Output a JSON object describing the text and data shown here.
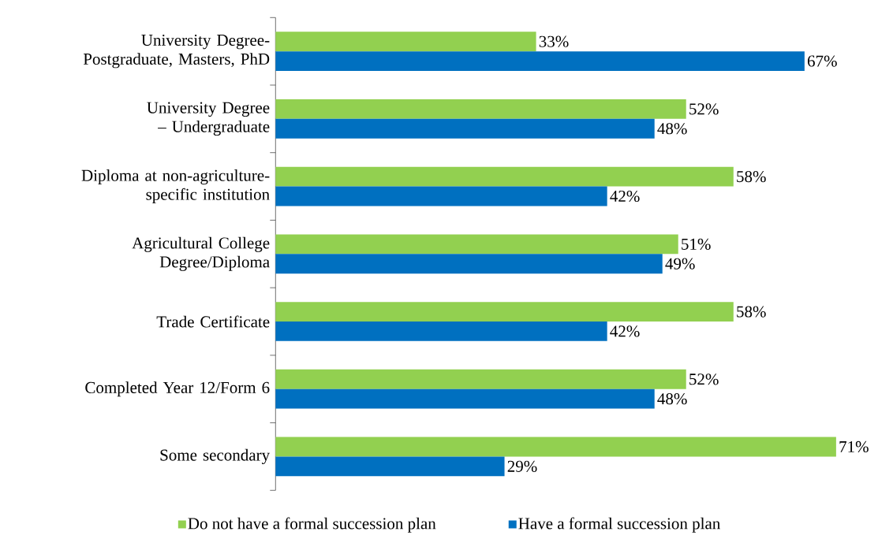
{
  "chart_data": {
    "type": "bar",
    "orientation": "horizontal",
    "legend": "bottom",
    "categories": [
      "University Degree-Postgraduate, Masters, PhD",
      "University Degree – Undergraduate",
      "Diploma at non-agriculture-specific institution",
      "Agricultural College Degree/Diploma",
      "Trade Certificate",
      "Completed Year 12/Form 6",
      "Some secondary"
    ],
    "series": [
      {
        "name": "Do not have a formal succession plan",
        "color": "#92d050",
        "values": [
          33,
          52,
          58,
          51,
          58,
          52,
          71
        ],
        "value_labels": [
          "33%",
          "52%",
          "58%",
          "51%",
          "58%",
          "52%",
          "71%"
        ]
      },
      {
        "name": "Have a formal succession plan",
        "color": "#0070c0",
        "values": [
          67,
          48,
          42,
          49,
          42,
          48,
          29
        ],
        "value_labels": [
          "67%",
          "48%",
          "42%",
          "49%",
          "42%",
          "48%",
          "29%"
        ]
      }
    ]
  }
}
